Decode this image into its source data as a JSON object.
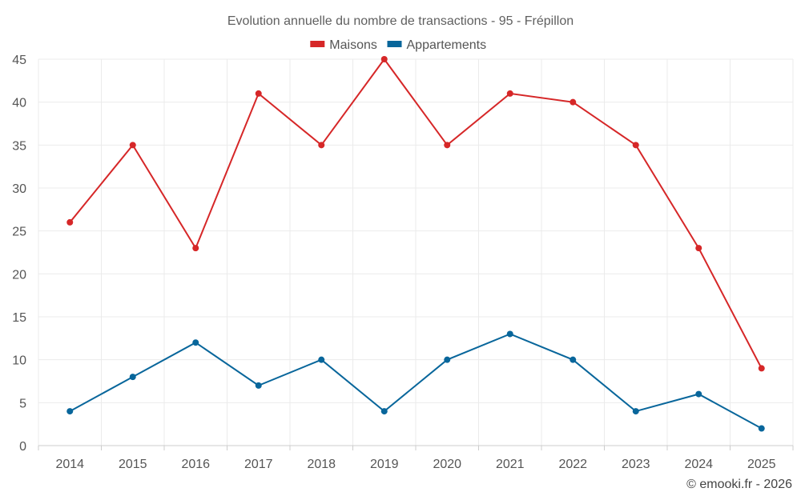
{
  "chart_data": {
    "type": "line",
    "title": "Evolution annuelle du nombre de transactions - 95 - Frépillon",
    "categories": [
      "2014",
      "2015",
      "2016",
      "2017",
      "2018",
      "2019",
      "2020",
      "2021",
      "2022",
      "2023",
      "2024",
      "2025"
    ],
    "series": [
      {
        "name": "Maisons",
        "color": "#d62728",
        "values": [
          26,
          35,
          23,
          41,
          35,
          45,
          35,
          41,
          40,
          35,
          23,
          9
        ]
      },
      {
        "name": "Appartements",
        "color": "#08669b",
        "values": [
          4,
          8,
          12,
          7,
          10,
          4,
          10,
          13,
          10,
          4,
          6,
          2
        ]
      }
    ],
    "ylim": [
      0,
      45
    ],
    "yticks": [
      0,
      5,
      10,
      15,
      20,
      25,
      30,
      35,
      40,
      45
    ],
    "grid": true,
    "legend_position": "top-center",
    "xlabel": "",
    "ylabel": ""
  },
  "credit": "© emooki.fr - 2026"
}
